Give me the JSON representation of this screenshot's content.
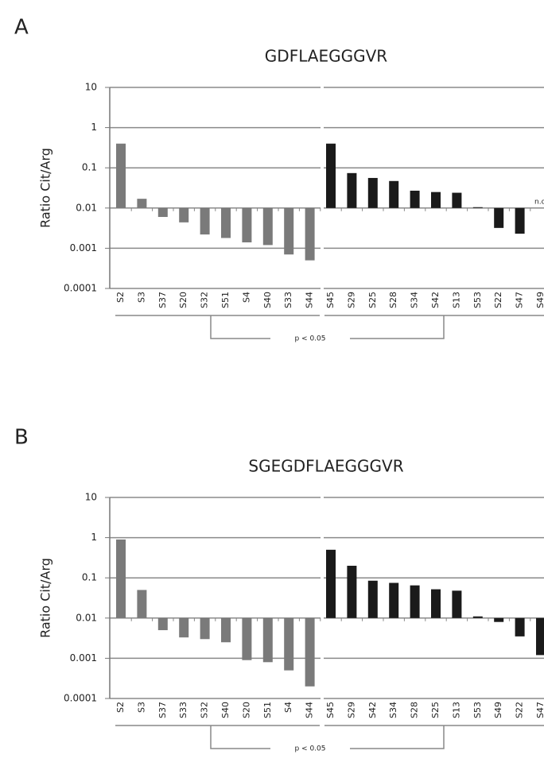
{
  "chart_data": [
    {
      "type": "bar",
      "panel_label": "A",
      "title": "GDFLAEGGGVR",
      "y_label": "Ratio Cit/Arg",
      "log_scale": true,
      "grid": true,
      "ylim": [
        0.0001,
        10
      ],
      "yticks": [
        0.0001,
        0.001,
        0.01,
        0.1,
        1,
        10
      ],
      "bar_base": 0.01,
      "categories": [
        "S2",
        "S3",
        "S37",
        "S20",
        "S32",
        "S51",
        "S4",
        "S40",
        "S33",
        "S44",
        "S45",
        "S29",
        "S25",
        "S28",
        "S34",
        "S42",
        "S13",
        "S53",
        "S22",
        "S47",
        "S49"
      ],
      "values": [
        0.4,
        0.017,
        0.006,
        0.0044,
        0.0022,
        0.0018,
        0.0014,
        0.0012,
        0.0007,
        0.0005,
        0.4,
        0.074,
        0.056,
        0.047,
        0.027,
        0.025,
        0.024,
        0.0105,
        0.0032,
        0.0023,
        null
      ],
      "colors": [
        "#7a7a7a",
        "#7a7a7a",
        "#7a7a7a",
        "#7a7a7a",
        "#7a7a7a",
        "#7a7a7a",
        "#7a7a7a",
        "#7a7a7a",
        "#7a7a7a",
        "#7a7a7a",
        "#1a1a1a",
        "#1a1a1a",
        "#1a1a1a",
        "#1a1a1a",
        "#1a1a1a",
        "#1a1a1a",
        "#1a1a1a",
        "#1a1a1a",
        "#1a1a1a",
        "#1a1a1a",
        "#1a1a1a"
      ],
      "na_label": "n.d.",
      "bracket_label": "p < 0.05"
    },
    {
      "type": "bar",
      "panel_label": "B",
      "title": "SGEGDFLAEGGGVR",
      "y_label": "Ratio Cit/Arg",
      "log_scale": true,
      "grid": true,
      "ylim": [
        0.0001,
        10
      ],
      "yticks": [
        0.0001,
        0.001,
        0.01,
        0.1,
        1,
        10
      ],
      "bar_base": 0.01,
      "categories": [
        "S2",
        "S3",
        "S37",
        "S33",
        "S32",
        "S40",
        "S20",
        "S51",
        "S4",
        "S44",
        "S45",
        "S29",
        "S42",
        "S34",
        "S28",
        "S25",
        "S13",
        "S53",
        "S49",
        "S22",
        "S47"
      ],
      "values": [
        0.9,
        0.05,
        0.005,
        0.0033,
        0.003,
        0.0025,
        0.0009,
        0.0008,
        0.0005,
        0.0002,
        0.5,
        0.2,
        0.085,
        0.075,
        0.065,
        0.052,
        0.048,
        0.011,
        0.008,
        0.0035,
        0.0012
      ],
      "colors": [
        "#7a7a7a",
        "#7a7a7a",
        "#7a7a7a",
        "#7a7a7a",
        "#7a7a7a",
        "#7a7a7a",
        "#7a7a7a",
        "#7a7a7a",
        "#7a7a7a",
        "#7a7a7a",
        "#1a1a1a",
        "#1a1a1a",
        "#1a1a1a",
        "#1a1a1a",
        "#1a1a1a",
        "#1a1a1a",
        "#1a1a1a",
        "#1a1a1a",
        "#1a1a1a",
        "#1a1a1a",
        "#1a1a1a"
      ],
      "bracket_label": "p < 0.05"
    }
  ]
}
